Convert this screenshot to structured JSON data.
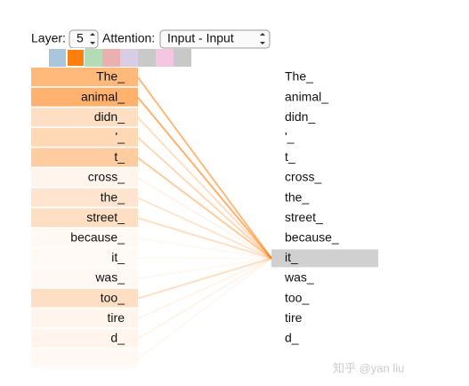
{
  "controls": {
    "layer_label": "Layer:",
    "layer_value": "5",
    "attention_label": "Attention:",
    "attention_value": "Input - Input"
  },
  "heads": {
    "colors": [
      "#a9c6dc",
      "#ff7f0e",
      "#b2dbb6",
      "#eab0b0",
      "#d8cde2",
      "#c9c9c9",
      "#f5c6e2",
      "#c8c8c8"
    ],
    "selected": 1
  },
  "tokens_left": [
    "The_",
    "animal_",
    "didn_",
    "'_",
    "t_",
    "cross_",
    "the_",
    "street_",
    "because_",
    "it_",
    "was_",
    "too_",
    "tire",
    "d_",
    null
  ],
  "tokens_right": [
    "The_",
    "animal_",
    "didn_",
    "'_",
    "t_",
    "cross_",
    "the_",
    "street_",
    "because_",
    "it_",
    "was_",
    "too_",
    "tire",
    "d_",
    null
  ],
  "query_index": 9,
  "attention": [
    0.55,
    0.6,
    0.25,
    0.3,
    0.4,
    0.08,
    0.2,
    0.25,
    0.05,
    0.04,
    0.05,
    0.25,
    0.08,
    0.08,
    0.05
  ],
  "watermark": "知乎 @yan liu"
}
